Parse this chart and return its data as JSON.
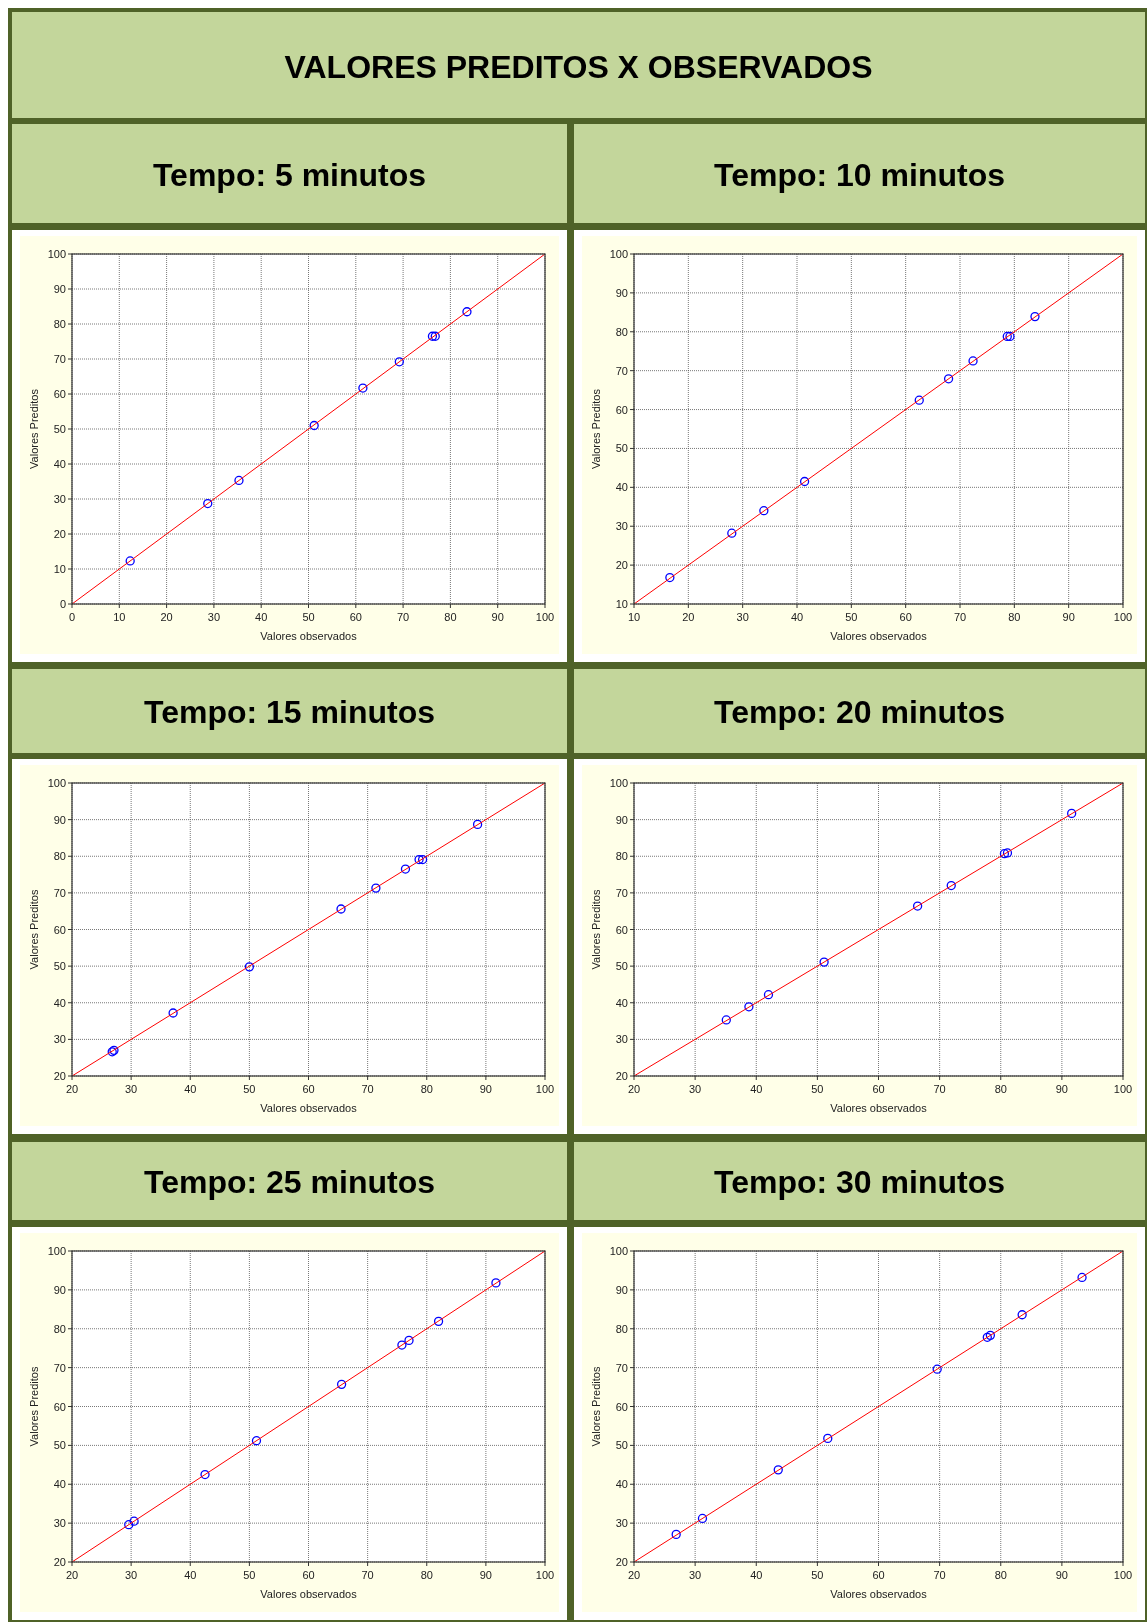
{
  "chart_data": [
    {
      "type": "other",
      "title": "VALORES PREDITOS X OBSERVADOS"
    },
    {
      "type": "scatter",
      "title": "Tempo: 5 minutos",
      "xlabel": "Valores observados",
      "ylabel": "Valores Preditos",
      "xlim": [
        0,
        100
      ],
      "ylim": [
        0,
        100
      ],
      "xticks": [
        0,
        10,
        20,
        30,
        40,
        50,
        60,
        70,
        80,
        90,
        100
      ],
      "yticks": [
        0,
        10,
        20,
        30,
        40,
        50,
        60,
        70,
        80,
        90,
        100
      ],
      "grid": true,
      "series": [
        {
          "color": "#0000ff",
          "marker": "circle",
          "x": [
            12.3,
            28.7,
            35.3,
            51.2,
            61.5,
            69.2,
            76.2,
            76.8,
            83.5
          ],
          "values": [
            12.3,
            28.7,
            35.3,
            51,
            61.7,
            69.2,
            76.5,
            76.5,
            83.5
          ]
        },
        {
          "type": "line",
          "color": "#ff0000",
          "marker": "none",
          "x": [
            0,
            100
          ],
          "values": [
            0,
            100
          ]
        }
      ]
    },
    {
      "type": "scatter",
      "title": "Tempo: 10 minutos",
      "xlabel": "Valores observados",
      "ylabel": "Valores Preditos",
      "xlim": [
        10,
        100
      ],
      "ylim": [
        10,
        100
      ],
      "xticks": [
        10,
        20,
        30,
        40,
        50,
        60,
        70,
        80,
        90,
        100
      ],
      "yticks": [
        10,
        20,
        30,
        40,
        50,
        60,
        70,
        80,
        90,
        100
      ],
      "grid": true,
      "series": [
        {
          "color": "#0000ff",
          "marker": "circle",
          "x": [
            16.6,
            28,
            33.9,
            41.4,
            62.5,
            67.9,
            72.4,
            78.7,
            79.2,
            83.8
          ],
          "values": [
            16.8,
            28.2,
            34,
            41.5,
            62.4,
            67.9,
            72.5,
            78.8,
            78.8,
            83.9
          ]
        },
        {
          "type": "line",
          "color": "#ff0000",
          "marker": "none",
          "x": [
            10,
            100
          ],
          "values": [
            10,
            100
          ]
        }
      ]
    },
    {
      "type": "scatter",
      "title": "Tempo: 15 minutos",
      "xlabel": "Valores observados",
      "ylabel": "Valores Preditos",
      "xlim": [
        20,
        100
      ],
      "ylim": [
        20,
        100
      ],
      "xticks": [
        20,
        30,
        40,
        50,
        60,
        70,
        80,
        90,
        100
      ],
      "yticks": [
        20,
        30,
        40,
        50,
        60,
        70,
        80,
        90,
        100
      ],
      "grid": true,
      "series": [
        {
          "color": "#0000ff",
          "marker": "circle",
          "x": [
            26.8,
            27.1,
            37.1,
            50,
            65.5,
            71.4,
            76.4,
            78.7,
            79.3,
            88.6
          ],
          "values": [
            26.6,
            27,
            37.2,
            49.8,
            65.6,
            71.3,
            76.5,
            79.1,
            79.1,
            88.7
          ]
        },
        {
          "type": "line",
          "color": "#ff0000",
          "marker": "none",
          "x": [
            20,
            100
          ],
          "values": [
            20,
            100
          ]
        }
      ]
    },
    {
      "type": "scatter",
      "title": "Tempo: 20 minutos",
      "xlabel": "Valores observados",
      "ylabel": "Valores Preditos",
      "xlim": [
        20,
        100
      ],
      "ylim": [
        20,
        100
      ],
      "xticks": [
        20,
        30,
        40,
        50,
        60,
        70,
        80,
        90,
        100
      ],
      "yticks": [
        20,
        30,
        40,
        50,
        60,
        70,
        80,
        90,
        100
      ],
      "grid": true,
      "series": [
        {
          "color": "#0000ff",
          "marker": "circle",
          "x": [
            35.1,
            38.8,
            42,
            51.1,
            66.4,
            71.9,
            80.6,
            81.1,
            91.6
          ],
          "values": [
            35.3,
            38.9,
            42.2,
            51.1,
            66.4,
            72,
            80.7,
            80.9,
            91.7
          ]
        },
        {
          "type": "line",
          "color": "#ff0000",
          "marker": "none",
          "x": [
            20,
            100
          ],
          "values": [
            20,
            100
          ]
        }
      ]
    },
    {
      "type": "scatter",
      "title": "Tempo: 25 minutos",
      "xlabel": "Valores observados",
      "ylabel": "Valores Preditos",
      "xlim": [
        20,
        100
      ],
      "ylim": [
        20,
        100
      ],
      "xticks": [
        20,
        30,
        40,
        50,
        60,
        70,
        80,
        90,
        100
      ],
      "yticks": [
        20,
        30,
        40,
        50,
        60,
        70,
        80,
        90,
        100
      ],
      "grid": true,
      "series": [
        {
          "color": "#0000ff",
          "marker": "circle",
          "x": [
            29.6,
            30.5,
            42.5,
            51.2,
            65.6,
            75.8,
            77,
            82,
            91.7
          ],
          "values": [
            29.6,
            30.5,
            42.5,
            51.2,
            65.7,
            75.8,
            77,
            81.9,
            91.8
          ]
        },
        {
          "type": "line",
          "color": "#ff0000",
          "marker": "none",
          "x": [
            20,
            100
          ],
          "values": [
            20,
            100
          ]
        }
      ]
    },
    {
      "type": "scatter",
      "title": "Tempo: 30 minutos",
      "xlabel": "Valores observados",
      "ylabel": "Valores Preditos",
      "xlim": [
        20,
        100
      ],
      "ylim": [
        20,
        100
      ],
      "xticks": [
        20,
        30,
        40,
        50,
        60,
        70,
        80,
        90,
        100
      ],
      "yticks": [
        20,
        30,
        40,
        50,
        60,
        70,
        80,
        90,
        100
      ],
      "grid": true,
      "series": [
        {
          "color": "#0000ff",
          "marker": "circle",
          "x": [
            26.9,
            31.2,
            43.6,
            51.7,
            69.6,
            77.8,
            78.3,
            83.5,
            93.3
          ],
          "values": [
            27.1,
            31.2,
            43.7,
            51.8,
            69.6,
            77.8,
            78.3,
            83.6,
            93.2
          ]
        },
        {
          "type": "line",
          "color": "#ff0000",
          "marker": "none",
          "x": [
            20,
            100
          ],
          "values": [
            20,
            100
          ]
        }
      ]
    }
  ]
}
